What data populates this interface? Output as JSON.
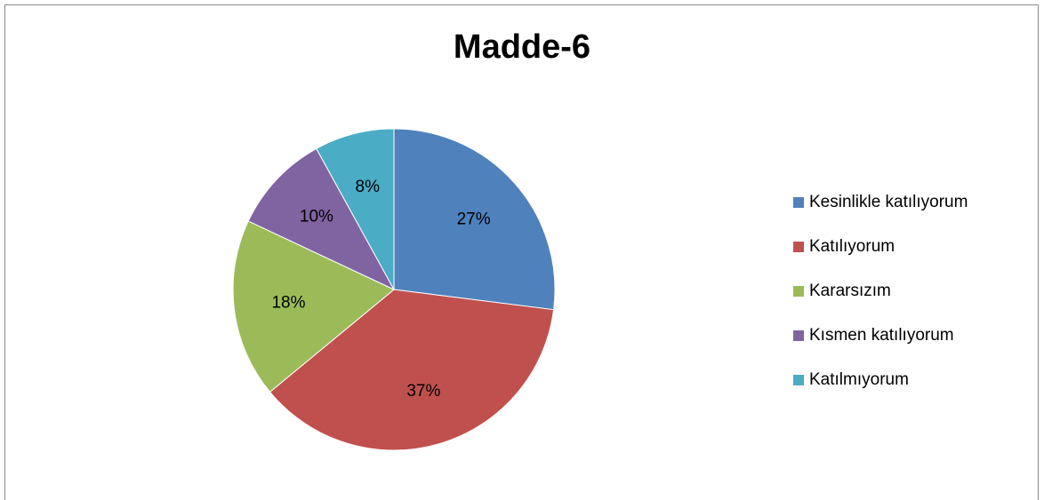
{
  "chart_data": {
    "type": "pie",
    "title": "Madde-6",
    "categories": [
      "Kesinlikle katılıyorum",
      "Katılıyorum",
      "Kararsızım",
      "Kısmen katılıyorum",
      "Katılmıyorum"
    ],
    "values": [
      27,
      37,
      18,
      10,
      8
    ],
    "labels": [
      "27%",
      "37%",
      "18%",
      "10%",
      "8%"
    ],
    "colors": [
      "#4F81BD",
      "#C0504D",
      "#9BBB59",
      "#8064A2",
      "#4BACC6"
    ],
    "legend_position": "right"
  }
}
